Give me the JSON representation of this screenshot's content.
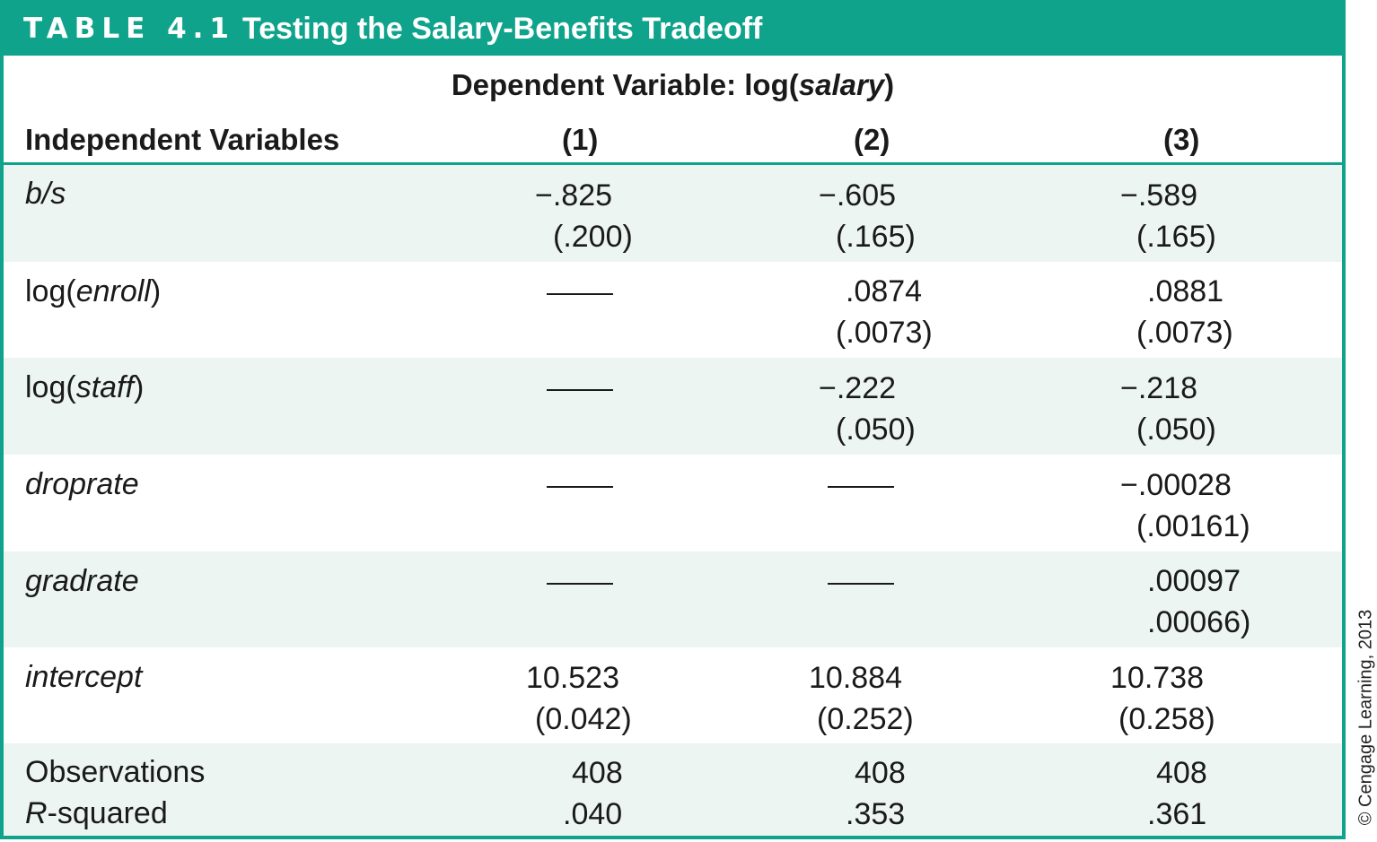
{
  "table": {
    "number": "TABLE 4.1",
    "title": "Testing the Salary-Benefits Tradeoff",
    "dependent_prefix": "Dependent Variable: log(",
    "dependent_var": "salary",
    "dependent_suffix": ")",
    "header": {
      "independent": "Independent Variables",
      "col1": "(1)",
      "col2": "(2)",
      "col3": "(3)"
    },
    "rows": {
      "bs": {
        "label": "b/s",
        "c1": "−.825",
        "c1se": "(.200)",
        "c2": "−.605",
        "c2se": "(.165)",
        "c3": "−.589",
        "c3se": "(.165)"
      },
      "enroll": {
        "label_pre": "log(",
        "label_var": "enroll",
        "label_post": ")",
        "c1": "—",
        "c2": ".0874",
        "c2se": "(.0073)",
        "c3": ".0881",
        "c3se": "(.0073)"
      },
      "staff": {
        "label_pre": "log(",
        "label_var": "staff",
        "label_post": ")",
        "c1": "—",
        "c2": "−.222",
        "c2se": "(.050)",
        "c3": "−.218",
        "c3se": "(.050)"
      },
      "droprate": {
        "label": "droprate",
        "c1": "—",
        "c2": "—",
        "c3": "−.00028",
        "c3se": "(.00161)"
      },
      "gradrate": {
        "label": "gradrate",
        "c1": "—",
        "c2": "—",
        "c3": ".00097",
        "c3se": ".00066)"
      },
      "intercept": {
        "label": "intercept",
        "c1": "10.523",
        "c1se": "(0.042)",
        "c2": "10.884",
        "c2se": "(0.252)",
        "c3": "10.738",
        "c3se": "(0.258)"
      },
      "observations": {
        "label": "Observations",
        "c1": "408",
        "c2": "408",
        "c3": "408"
      },
      "rsquared": {
        "label_var": "R",
        "label_post": "-squared",
        "c1": ".040",
        "c2": ".353",
        "c3": ".361"
      }
    },
    "copyright": "© Cengage Learning, 2013"
  },
  "colors": {
    "accent": "#0fa38c",
    "band": "#ecf5f2"
  }
}
